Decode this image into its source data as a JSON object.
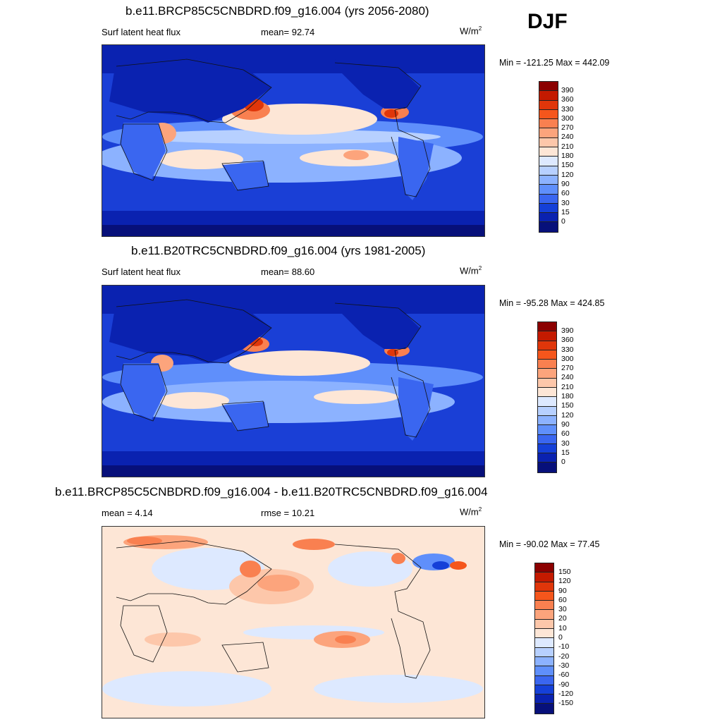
{
  "season": "DJF",
  "panels": [
    {
      "title": "b.e11.BRCP85C5CNBDRD.f09_g16.004 (yrs 2056-2080)",
      "left_label": "Surf latent heat flux",
      "mean_text": "mean=  92.74",
      "units": "W/m",
      "units_sup": "2",
      "minmax": "Min = -121.25 Max = 442.09",
      "levels": [
        "390",
        "360",
        "330",
        "300",
        "270",
        "240",
        "210",
        "180",
        "150",
        "120",
        "90",
        "60",
        "30",
        "15",
        "0"
      ],
      "colors": [
        "#8b0000",
        "#c41a00",
        "#e0360a",
        "#f5561c",
        "#f98050",
        "#fca47c",
        "#fdc7aa",
        "#fde6d6",
        "#dde9ff",
        "#b7d0ff",
        "#8cb2ff",
        "#5f8ffb",
        "#3a66f0",
        "#1540d8",
        "#0a22b0",
        "#07107a"
      ]
    },
    {
      "title": "b.e11.B20TRC5CNBDRD.f09_g16.004 (yrs 1981-2005)",
      "left_label": "Surf latent heat flux",
      "mean_text": "mean=  88.60",
      "units": "W/m",
      "units_sup": "2",
      "minmax": "Min = -95.28 Max = 424.85",
      "levels": [
        "390",
        "360",
        "330",
        "300",
        "270",
        "240",
        "210",
        "180",
        "150",
        "120",
        "90",
        "60",
        "30",
        "15",
        "0"
      ],
      "colors": [
        "#8b0000",
        "#c41a00",
        "#e0360a",
        "#f5561c",
        "#f98050",
        "#fca47c",
        "#fdc7aa",
        "#fde6d6",
        "#dde9ff",
        "#b7d0ff",
        "#8cb2ff",
        "#5f8ffb",
        "#3a66f0",
        "#1540d8",
        "#0a22b0",
        "#07107a"
      ]
    },
    {
      "title": "b.e11.BRCP85C5CNBDRD.f09_g16.004 - b.e11.B20TRC5CNBDRD.f09_g16.004",
      "left_label": "mean =   4.14",
      "mean_text": "rmse =  10.21",
      "units": "W/m",
      "units_sup": "2",
      "minmax": "Min = -90.02 Max =  77.45",
      "levels": [
        "150",
        "120",
        "90",
        "60",
        "30",
        "20",
        "10",
        "0",
        "-10",
        "-20",
        "-30",
        "-60",
        "-90",
        "-120",
        "-150"
      ],
      "colors": [
        "#8b0000",
        "#c41a00",
        "#e0360a",
        "#f5561c",
        "#f98050",
        "#fca47c",
        "#fdc7aa",
        "#fde6d6",
        "#dde9ff",
        "#b7d0ff",
        "#8cb2ff",
        "#5f8ffb",
        "#3a66f0",
        "#1540d8",
        "#0a22b0",
        "#07107a"
      ]
    }
  ]
}
